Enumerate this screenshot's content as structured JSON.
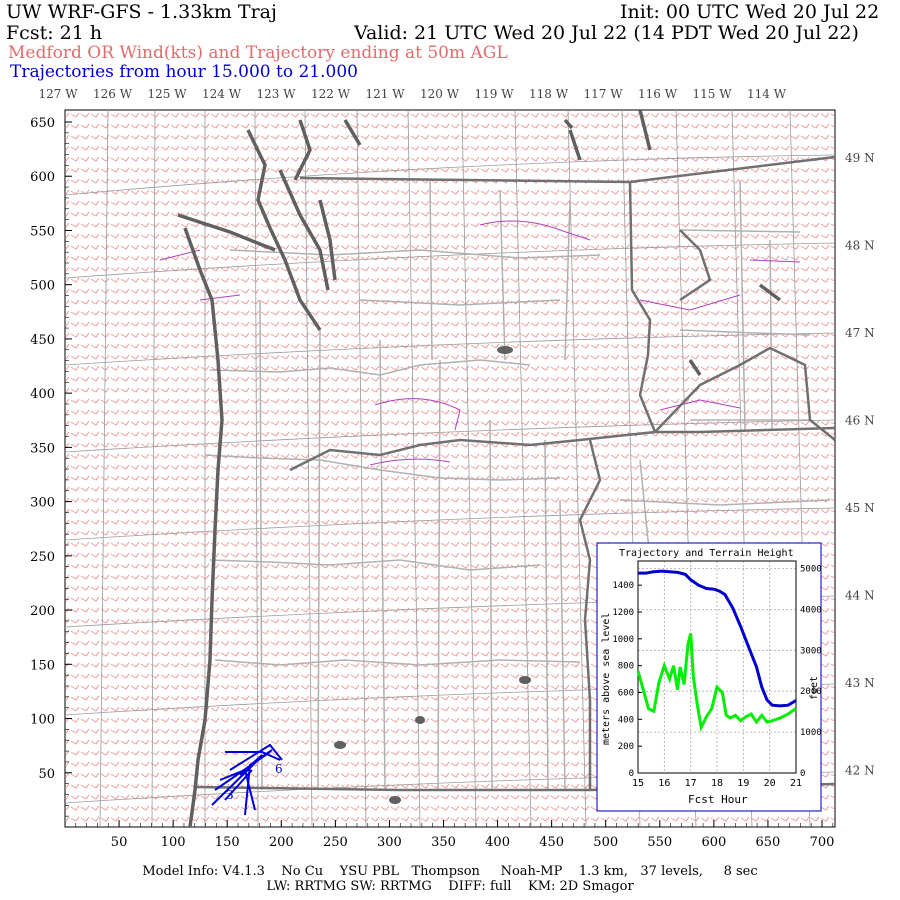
{
  "header": {
    "title": "UW WRF-GFS - 1.33km Traj",
    "init": "Init: 00 UTC Wed 20 Jul 22",
    "fcst": "Fcst:   21 h",
    "valid": "Valid: 21 UTC Wed 20 Jul 22 (14 PDT Wed 20 Jul 22)",
    "subtitle": "Medford OR Wind(kts) and Trajectory ending at 50m AGL",
    "traj_hours": "Trajectories from hour  15.000 to  21.000"
  },
  "colors": {
    "subtitle": "#e26b6b",
    "traj_hours": "#0000cc",
    "wind_barbs": "#e87878",
    "coast": "#606060",
    "state_border": "#707070",
    "county_border": "#b0b0b0",
    "water": "#b040c0",
    "trajectory": "#0000dd",
    "inset_height": "#0000cc",
    "inset_terrain": "#00ee00"
  },
  "map": {
    "top_lon_labels": [
      "127 W",
      "126 W",
      "125 W",
      "124 W",
      "123 W",
      "122 W",
      "121 W",
      "120 W",
      "119 W",
      "118 W",
      "117 W",
      "116 W",
      "115 W",
      "114 W"
    ],
    "right_lat_labels": [
      "49 N",
      "48 N",
      "47 N",
      "46 N",
      "45 N",
      "44 N",
      "43 N",
      "42 N"
    ],
    "y_ticks": [
      "650",
      "600",
      "550",
      "500",
      "450",
      "400",
      "350",
      "300",
      "250",
      "200",
      "150",
      "100",
      "50"
    ],
    "x_ticks": [
      "50",
      "100",
      "150",
      "200",
      "250",
      "300",
      "350",
      "400",
      "450",
      "500",
      "550",
      "600",
      "650",
      "700"
    ],
    "trajectory_labels": [
      "6",
      "3"
    ]
  },
  "chart_data": {
    "type": "line",
    "title": "Trajectory and Terrain Height",
    "xlabel": "Fcst Hour",
    "ylabel_left": "meters above sea level",
    "ylabel_right": "feet",
    "x_ticks": [
      "15",
      "16",
      "17",
      "18",
      "19",
      "20",
      "21"
    ],
    "y_ticks_left": [
      "0",
      "200",
      "400",
      "600",
      "800",
      "1000",
      "1200",
      "1400"
    ],
    "y_ticks_right": [
      "0",
      "1000",
      "2000",
      "3000",
      "4000",
      "5000"
    ],
    "xlim": [
      15,
      21
    ],
    "ylim": [
      0,
      1580
    ],
    "series": [
      {
        "x": [
          15.0,
          15.3,
          15.6,
          15.9,
          16.2,
          16.5,
          16.8,
          17.0,
          17.3,
          17.6,
          17.9,
          18.1,
          18.3,
          18.6,
          18.9,
          19.2,
          19.5,
          19.7,
          19.9,
          20.1,
          20.4,
          20.7,
          21.0
        ],
        "y": [
          1490,
          1490,
          1500,
          1505,
          1500,
          1495,
          1480,
          1440,
          1400,
          1375,
          1370,
          1355,
          1330,
          1230,
          1090,
          940,
          790,
          640,
          545,
          505,
          500,
          505,
          540
        ]
      },
      {
        "x": [
          15.0,
          15.2,
          15.4,
          15.6,
          15.8,
          16.0,
          16.2,
          16.35,
          16.5,
          16.6,
          16.75,
          16.9,
          17.0,
          17.1,
          17.25,
          17.4,
          17.6,
          17.8,
          18.0,
          18.2,
          18.35,
          18.5,
          18.7,
          18.9,
          19.1,
          19.3,
          19.5,
          19.7,
          19.9,
          20.1,
          20.4,
          20.7,
          21.0
        ],
        "y": [
          760,
          620,
          480,
          460,
          680,
          800,
          700,
          800,
          620,
          790,
          660,
          960,
          1040,
          720,
          510,
          340,
          420,
          480,
          640,
          600,
          430,
          410,
          430,
          390,
          420,
          440,
          380,
          430,
          380,
          390,
          410,
          440,
          480
        ]
      }
    ]
  },
  "footer": {
    "line1": "Model Info: V4.1.3    No Cu    YSU PBL   Thompson     Noah-MP    1.3 km,   37 levels,     8 sec",
    "line2": "LW: RRTMG SW: RRTMG    DIFF: full    KM: 2D Smagor"
  }
}
